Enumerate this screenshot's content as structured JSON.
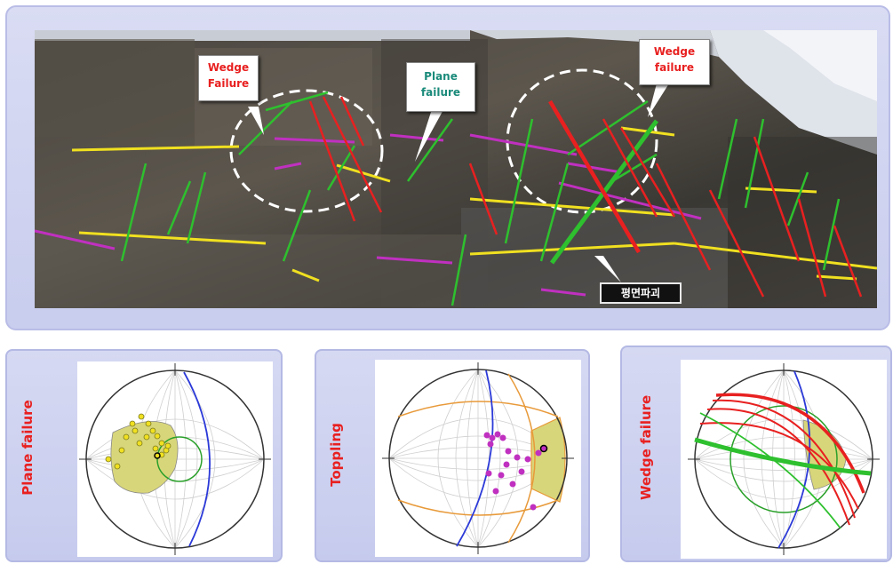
{
  "photo_labels": {
    "wedge_left": [
      "Wedge",
      "Failure"
    ],
    "plane": [
      "Plane",
      "failure"
    ],
    "wedge_right": [
      "Wedge",
      "failure"
    ],
    "korean_tag": "평면파괴"
  },
  "panels": {
    "plane": {
      "title": "Plane failure"
    },
    "toppling": {
      "title": "Toppling"
    },
    "wedge": {
      "title": "Wedge failure"
    }
  },
  "colors": {
    "red": "#e82020",
    "green": "#2ec02e",
    "yellow": "#f0e020",
    "magenta": "#c030c0",
    "blue": "#2c3ad8",
    "orange": "#e89a3a",
    "fill_yellow": "#d8d67a",
    "frame": "#c9cdee"
  }
}
